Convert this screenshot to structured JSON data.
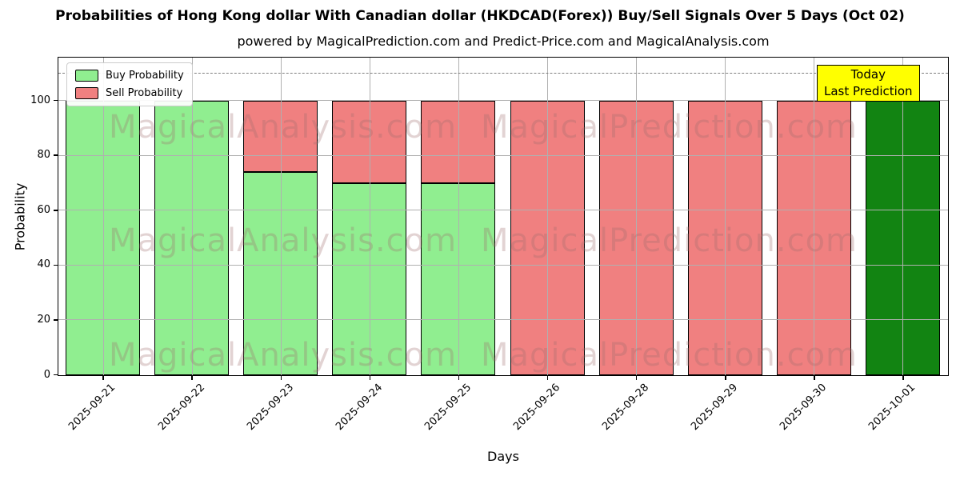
{
  "chart_data": {
    "type": "bar",
    "stacked": true,
    "title": "Probabilities of Hong Kong dollar With Canadian dollar (HKDCAD(Forex)) Buy/Sell Signals Over 5 Days (Oct 02)",
    "subtitle": "powered by MagicalPrediction.com and Predict-Price.com and MagicalAnalysis.com",
    "xlabel": "Days",
    "ylabel": "Probability",
    "ylim": [
      0,
      115.5
    ],
    "yticks": [
      0,
      20,
      40,
      60,
      80,
      100
    ],
    "grid": true,
    "legend_position": "upper-left",
    "threshold_line": {
      "y": 110,
      "style": "dashed",
      "color": "#7f7f7f"
    },
    "categories": [
      "2025-09-21",
      "2025-09-22",
      "2025-09-23",
      "2025-09-24",
      "2025-09-25",
      "2025-09-26",
      "2025-09-28",
      "2025-09-29",
      "2025-09-30",
      "2025-10-01"
    ],
    "series": [
      {
        "name": "Buy Probability",
        "color": "#90ee90",
        "in_legend": true,
        "values": [
          100,
          100,
          74,
          70,
          70,
          0,
          0,
          0,
          0,
          0
        ]
      },
      {
        "name": "Sell Probability",
        "color": "#f08080",
        "in_legend": true,
        "values": [
          0,
          0,
          26,
          30,
          30,
          100,
          100,
          100,
          100,
          0
        ]
      },
      {
        "name": "Today Prediction",
        "color": "#128412",
        "in_legend": false,
        "values": [
          0,
          0,
          0,
          0,
          0,
          0,
          0,
          0,
          0,
          100
        ]
      }
    ],
    "legend": {
      "entries": [
        "Buy Probability",
        "Sell Probability"
      ]
    },
    "annotation": {
      "lines": [
        "Today",
        "Last Prediction"
      ],
      "bg": "#ffff00",
      "border": "#000000"
    },
    "watermarks": {
      "left": "MagicalAnalysis.com",
      "right": "MagicalPrediction.com"
    },
    "bar_edge_color": "#000000",
    "grid_color": "#b0b0b0"
  }
}
